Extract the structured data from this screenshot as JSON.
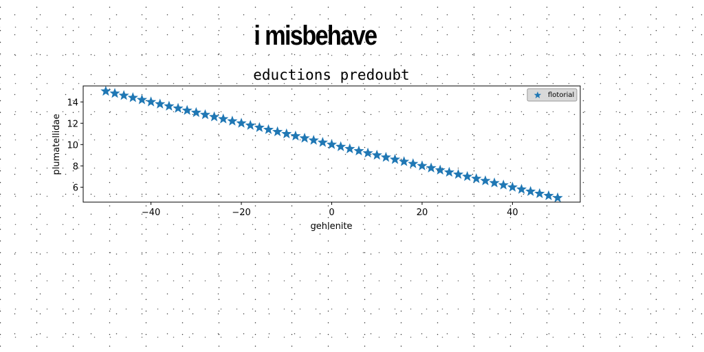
{
  "header": {
    "title": "i misbehave"
  },
  "chart_data": {
    "type": "scatter",
    "title": "eductions predoubt",
    "xlabel": "gehlenite",
    "ylabel": "plumatellidae",
    "xlim": [
      -55,
      55
    ],
    "ylim": [
      4.6,
      15.5
    ],
    "xticks": [
      -40,
      -20,
      0,
      20,
      40
    ],
    "yticks": [
      6,
      8,
      10,
      12,
      14
    ],
    "xtick_labels": [
      "−40",
      "−20",
      "0",
      "20",
      "40"
    ],
    "ytick_labels": [
      "6",
      "8",
      "10",
      "12",
      "14"
    ],
    "grid": false,
    "legend_position": "top-right",
    "marker": "star",
    "series": [
      {
        "name": "flotorial",
        "color": "#1f77b4",
        "x": [
          -50,
          -48,
          -46,
          -44,
          -42,
          -40,
          -38,
          -36,
          -34,
          -32,
          -30,
          -28,
          -26,
          -24,
          -22,
          -20,
          -18,
          -16,
          -14,
          -12,
          -10,
          -8,
          -6,
          -4,
          -2,
          0,
          2,
          4,
          6,
          8,
          10,
          12,
          14,
          16,
          18,
          20,
          22,
          24,
          26,
          28,
          30,
          32,
          34,
          36,
          38,
          40,
          42,
          44,
          46,
          48,
          50
        ],
        "y": [
          15.0,
          14.8,
          14.6,
          14.4,
          14.2,
          14.0,
          13.8,
          13.6,
          13.4,
          13.2,
          13.0,
          12.8,
          12.6,
          12.4,
          12.2,
          12.0,
          11.8,
          11.6,
          11.4,
          11.2,
          11.0,
          10.8,
          10.6,
          10.4,
          10.2,
          10.0,
          9.8,
          9.6,
          9.4,
          9.2,
          9.0,
          8.8,
          8.6,
          8.4,
          8.2,
          8.0,
          7.8,
          7.6,
          7.4,
          7.2,
          7.0,
          6.8,
          6.6,
          6.4,
          6.2,
          6.0,
          5.8,
          5.6,
          5.4,
          5.2,
          5.0
        ]
      }
    ]
  }
}
